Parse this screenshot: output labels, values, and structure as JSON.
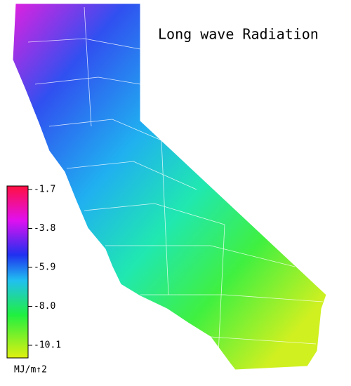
{
  "title": "Long wave Radiation",
  "colorbar": {
    "ticks": [
      -1.7,
      -3.8,
      -5.9,
      {
        "value": -8,
        "label": "-8.0"
      },
      -10.1
    ],
    "unit": "MJ/m↑2"
  }
}
